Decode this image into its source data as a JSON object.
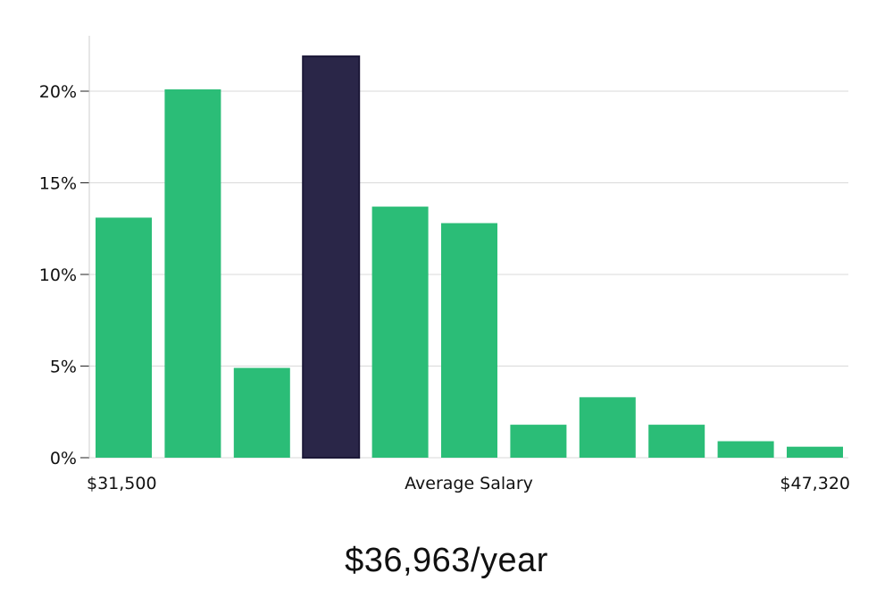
{
  "chart_data": {
    "type": "bar",
    "title": "",
    "xlabel": "Average Salary",
    "ylabel": "",
    "ylim": [
      0,
      23
    ],
    "yticks": [
      0,
      5,
      10,
      15,
      20
    ],
    "ytick_labels": [
      "0%",
      "5%",
      "10%",
      "15%",
      "20%"
    ],
    "x_range_labels": {
      "min": "$31,500",
      "max": "$47,320"
    },
    "values": [
      13.1,
      20.1,
      4.9,
      21.9,
      13.7,
      12.8,
      1.8,
      3.3,
      1.8,
      0.9,
      0.6
    ],
    "highlight_index": 3,
    "grid": true,
    "colors": {
      "bar": "#2bbd77",
      "highlight": "#2a2648",
      "grid": "#d9d9d9",
      "axis": "#cccccc"
    }
  },
  "average_salary": "$36,963/year"
}
